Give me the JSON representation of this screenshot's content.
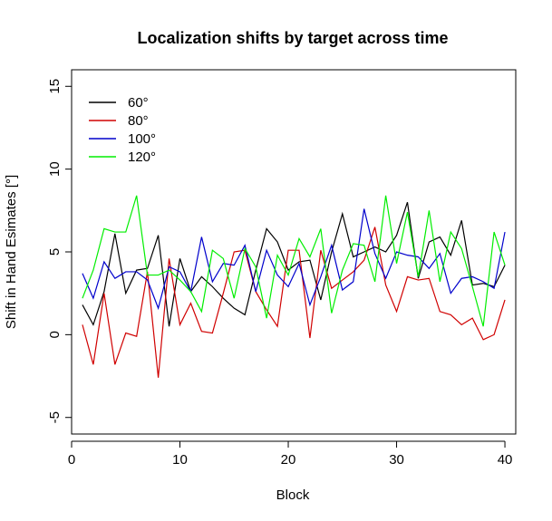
{
  "chart_data": {
    "type": "line",
    "title": "Localization shifts by target across time",
    "xlabel": "Block",
    "ylabel": "Shift in Hand Esimates [°]",
    "xlim": [
      0,
      41
    ],
    "ylim": [
      -6,
      16
    ],
    "xticks": [
      0,
      10,
      20,
      30,
      40
    ],
    "yticks": [
      -5,
      0,
      5,
      10,
      15
    ],
    "legend_position": "top-left",
    "x": [
      1,
      2,
      3,
      4,
      5,
      6,
      7,
      8,
      9,
      10,
      11,
      12,
      13,
      14,
      15,
      16,
      17,
      18,
      19,
      20,
      21,
      22,
      23,
      24,
      25,
      26,
      27,
      28,
      29,
      30,
      31,
      32,
      33,
      34,
      35,
      36,
      37,
      38,
      39,
      40
    ],
    "series": [
      {
        "name": "60°",
        "color": "#000000",
        "values": [
          1.8,
          0.6,
          2.6,
          6.1,
          2.5,
          3.9,
          4.0,
          6.0,
          0.5,
          4.6,
          2.6,
          3.5,
          2.9,
          2.2,
          1.6,
          1.2,
          3.9,
          6.4,
          5.6,
          3.9,
          4.4,
          4.5,
          2.1,
          5.0,
          7.3,
          4.7,
          5.0,
          5.3,
          5.0,
          6.0,
          8.0,
          3.4,
          5.6,
          5.9,
          4.8,
          6.9,
          3.0,
          3.1,
          2.9,
          4.2
        ]
      },
      {
        "name": "80°",
        "color": "#d00000",
        "values": [
          0.6,
          -1.8,
          2.5,
          -1.8,
          0.1,
          -0.1,
          3.8,
          -2.6,
          4.6,
          0.6,
          1.9,
          0.2,
          0.1,
          2.5,
          5.0,
          5.1,
          2.6,
          1.5,
          0.5,
          5.1,
          5.1,
          -0.2,
          5.1,
          2.8,
          3.3,
          3.8,
          4.5,
          6.5,
          3.0,
          1.4,
          3.5,
          3.3,
          3.4,
          1.4,
          1.2,
          0.6,
          1.0,
          -0.3,
          0.0,
          2.1
        ]
      },
      {
        "name": "100°",
        "color": "#0000cc",
        "values": [
          3.7,
          2.2,
          4.4,
          3.4,
          3.8,
          3.8,
          3.3,
          1.6,
          4.1,
          3.8,
          2.6,
          5.9,
          3.2,
          4.3,
          4.2,
          5.4,
          2.6,
          5.1,
          3.6,
          2.9,
          4.3,
          1.8,
          3.5,
          5.4,
          2.7,
          3.2,
          7.6,
          4.9,
          3.4,
          5.0,
          4.8,
          4.7,
          4.0,
          4.9,
          2.5,
          3.4,
          3.5,
          3.2,
          2.8,
          6.2
        ]
      },
      {
        "name": "120°",
        "color": "#00ee00",
        "values": [
          2.2,
          3.9,
          6.4,
          6.2,
          6.2,
          8.4,
          3.6,
          3.6,
          3.9,
          3.3,
          2.6,
          1.4,
          5.1,
          4.6,
          2.2,
          5.2,
          4.1,
          1.0,
          4.8,
          3.6,
          5.8,
          4.7,
          6.4,
          1.3,
          3.9,
          5.5,
          5.4,
          3.2,
          8.4,
          4.3,
          7.4,
          3.5,
          7.5,
          3.2,
          6.2,
          5.2,
          2.9,
          0.5,
          6.2,
          4.2
        ]
      }
    ]
  }
}
